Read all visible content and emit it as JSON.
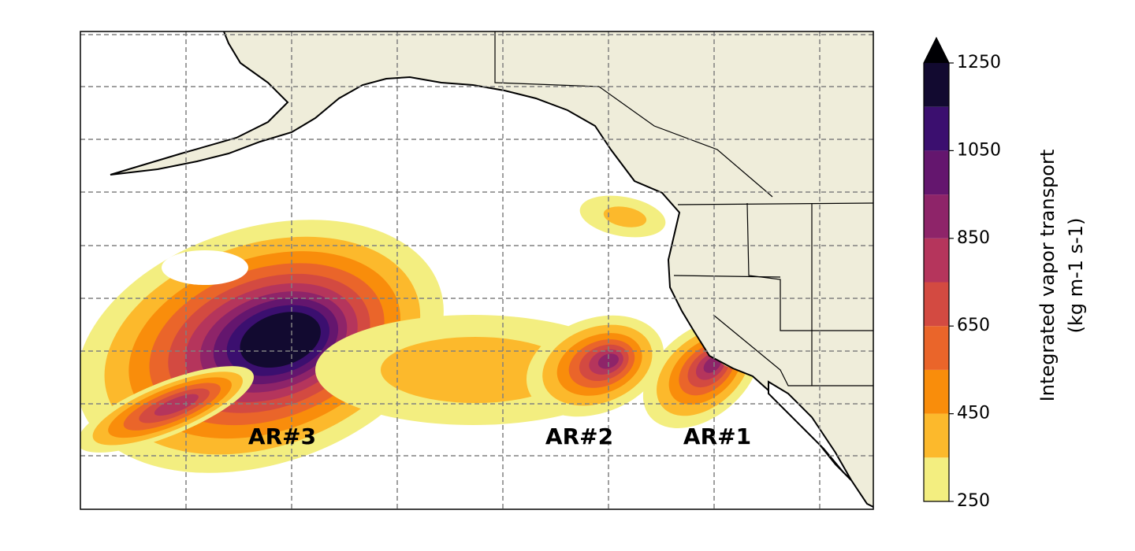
{
  "annotations": [
    "AR#3",
    "AR#2",
    "AR#1"
  ],
  "colorbar": {
    "label": [
      "Integrated vapor transport",
      "(kg m-1 s-1)"
    ],
    "lim": [
      250,
      1250
    ],
    "ticks": [
      250,
      450,
      650,
      850,
      1050,
      1250
    ],
    "levels": [
      250,
      350,
      450,
      550,
      650,
      750,
      850,
      950,
      1050,
      1150,
      1250
    ],
    "colors": [
      "#f3ee80",
      "#fcb92c",
      "#f98d0b",
      "#ea652a",
      "#d34a41",
      "#b5355c",
      "#8e2469",
      "#64166e",
      "#3b0f6f",
      "#120a30"
    ],
    "extend_color": "#000004"
  },
  "map": {
    "land_color": "#efedda",
    "grid": true
  }
}
